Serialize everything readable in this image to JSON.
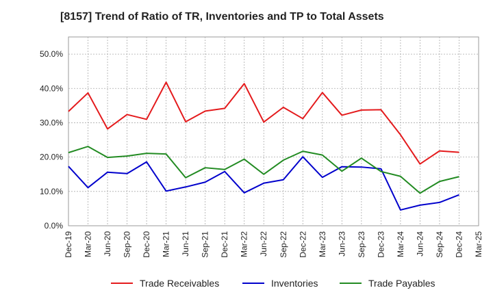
{
  "chart_data": {
    "type": "line",
    "title": "[8157]  Trend of Ratio of TR, Inventories and TP to Total Assets",
    "xlabel": "",
    "ylabel": "",
    "ylim": [
      0,
      55
    ],
    "y_ticks": [
      "0.0%",
      "10.0%",
      "20.0%",
      "30.0%",
      "40.0%",
      "50.0%"
    ],
    "y_tick_values": [
      0,
      10,
      20,
      30,
      40,
      50
    ],
    "grid": true,
    "legend_position": "bottom",
    "x": [
      "Dec-19",
      "Mar-20",
      "Jun-20",
      "Sep-20",
      "Dec-20",
      "Mar-21",
      "Jun-21",
      "Sep-21",
      "Dec-21",
      "Mar-22",
      "Jun-22",
      "Sep-22",
      "Dec-22",
      "Mar-23",
      "Jun-23",
      "Sep-23",
      "Dec-23",
      "Mar-24",
      "Jun-24",
      "Sep-24",
      "Dec-24",
      "Mar-25"
    ],
    "series": [
      {
        "name": "Trade Receivables",
        "color": "#e41a1c",
        "values": [
          33.3,
          38.7,
          28.2,
          32.4,
          31.0,
          41.8,
          30.3,
          33.4,
          34.2,
          41.4,
          30.2,
          34.5,
          31.2,
          38.8,
          32.2,
          33.7,
          33.8,
          26.5,
          18.0,
          21.8,
          21.4,
          null
        ]
      },
      {
        "name": "Inventories",
        "color": "#0000cc",
        "values": [
          17.3,
          11.1,
          15.6,
          15.2,
          18.6,
          10.1,
          11.3,
          12.7,
          15.8,
          9.6,
          12.4,
          13.4,
          20.1,
          14.1,
          17.2,
          17.1,
          16.6,
          4.6,
          6.0,
          6.8,
          9.0,
          null
        ]
      },
      {
        "name": "Trade Payables",
        "color": "#228b22",
        "values": [
          21.3,
          23.1,
          19.9,
          20.3,
          21.1,
          20.9,
          14.0,
          16.9,
          16.4,
          19.4,
          15.0,
          19.1,
          21.7,
          20.6,
          15.9,
          19.7,
          15.8,
          14.4,
          9.5,
          12.9,
          14.3,
          null
        ]
      }
    ]
  }
}
